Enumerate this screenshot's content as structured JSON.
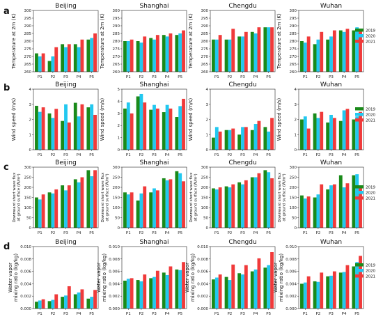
{
  "colors": {
    "2019": "#1a8a1a",
    "2020": "#22c8f0",
    "2021": "#f03a3a"
  },
  "chart_data": [
    {
      "type": "bar",
      "row_label": "a",
      "series_names": [
        "2019",
        "2020",
        "2021"
      ],
      "ylabel": "Temperature at 2m (K)",
      "categories": [
        "P1",
        "P2",
        "P3",
        "P4",
        "P5"
      ],
      "ylim": [
        260,
        300
      ],
      "yticks": [
        260,
        265,
        270,
        275,
        280,
        285,
        290,
        295,
        300
      ],
      "panels": [
        {
          "title": "Beijing",
          "series": [
            [
              272,
              267,
              278,
              278,
              281
            ],
            [
              270,
              270,
              276,
              276,
              282
            ],
            [
              272,
              276,
              278,
              281,
              285
            ]
          ]
        },
        {
          "title": "Shanghai",
          "series": [
            [
              280,
              280,
              282,
              284,
              284
            ],
            [
              280,
              279,
              281,
              283,
              285
            ],
            [
              281,
              283,
              284,
              285,
              287
            ]
          ]
        },
        {
          "title": "Chengdu",
          "series": [
            [
              281,
              281,
              283,
              286,
              289
            ],
            [
              281,
              281,
              283,
              285,
              289
            ],
            [
              284,
              288,
              286,
              289,
              289
            ]
          ]
        },
        {
          "title": "Wuhan",
          "series": [
            [
              280,
              278,
              281,
              287,
              287
            ],
            [
              279,
              281,
              283,
              286,
              289
            ],
            [
              283,
              286,
              287,
              288,
              288
            ]
          ]
        }
      ]
    },
    {
      "type": "bar",
      "row_label": "b",
      "series_names": [
        "2019",
        "2020",
        "2021"
      ],
      "ylabel": "Wind speed (m/s)",
      "categories": [
        "P1",
        "P2",
        "P3",
        "P4",
        "P5"
      ],
      "panels": [
        {
          "title": "Beijing",
          "ylim": [
            0,
            4
          ],
          "yticks": [
            0,
            1,
            2,
            3,
            4
          ],
          "series": [
            [
              2.9,
              2.4,
              1.9,
              3.1,
              2.8
            ],
            [
              2.5,
              2.1,
              3.0,
              2.2,
              3.0
            ],
            [
              2.8,
              2.7,
              1.8,
              3.0,
              2.3
            ]
          ]
        },
        {
          "title": "Shanghai",
          "ylim": [
            0,
            5
          ],
          "yticks": [
            0,
            1,
            2,
            3,
            4,
            5
          ],
          "series": [
            [
              3.4,
              4.4,
              3.3,
              3.1,
              2.7
            ],
            [
              3.9,
              4.6,
              3.7,
              3.7,
              3.6
            ],
            [
              3.0,
              3.9,
              3.4,
              3.4,
              4.2
            ]
          ]
        },
        {
          "title": "Chengdu",
          "ylim": [
            0,
            4
          ],
          "yticks": [
            0,
            1,
            2,
            3,
            4
          ],
          "series": [
            [
              0.8,
              1.3,
              1.0,
              1.3,
              1.5
            ],
            [
              1.5,
              1.3,
              1.5,
              1.7,
              1.2
            ],
            [
              1.2,
              1.4,
              1.5,
              1.9,
              2.1
            ]
          ]
        },
        {
          "title": "Wuhan",
          "ylim": [
            0,
            4
          ],
          "yticks": [
            0,
            1,
            2,
            3,
            4
          ],
          "series": [
            [
              2.0,
              2.4,
              1.8,
              1.9,
              2.0
            ],
            [
              2.2,
              2.1,
              2.3,
              2.6,
              2.2
            ],
            [
              1.4,
              2.5,
              2.1,
              2.7,
              2.5
            ]
          ]
        }
      ]
    },
    {
      "type": "bar",
      "row_label": "c",
      "series_names": [
        "2019",
        "2020",
        "2021"
      ],
      "ylabel": "Downward short wave flux at ground surface (W/m²)",
      "categories": [
        "P1",
        "P2",
        "P3",
        "P4",
        "P5"
      ],
      "ylim": [
        0,
        300
      ],
      "yticks": [
        0,
        50,
        100,
        150,
        200,
        250,
        300
      ],
      "panels": [
        {
          "title": "Beijing",
          "series": [
            [
              150,
              175,
              210,
              240,
              285
            ],
            [
              140,
              170,
              185,
              225,
              255
            ],
            [
              165,
              190,
              210,
              250,
              285
            ]
          ]
        },
        {
          "title": "Shanghai",
          "series": [
            [
              175,
              135,
              175,
              245,
              280
            ],
            [
              165,
              170,
              195,
              235,
              270
            ],
            [
              175,
              205,
              185,
              240,
              230
            ]
          ]
        },
        {
          "title": "Chengdu",
          "series": [
            [
              195,
              205,
              225,
              250,
              285
            ],
            [
              190,
              200,
              215,
              250,
              275
            ],
            [
              200,
              215,
              235,
              270,
              245
            ]
          ]
        },
        {
          "title": "Wuhan",
          "series": [
            [
              160,
              150,
              190,
              260,
              260
            ],
            [
              145,
              165,
              210,
              200,
              265
            ],
            [
              155,
              215,
              215,
              220,
              200
            ]
          ]
        }
      ]
    },
    {
      "type": "bar",
      "row_label": "d",
      "series_names": [
        "2019",
        "2020",
        "2021"
      ],
      "ylabel": "Water vapor mixing ratio (kg/kg)",
      "categories": [
        "P1",
        "P2",
        "P3",
        "P4",
        "P5"
      ],
      "ylim": [
        0,
        0.01
      ],
      "yticks": [
        0,
        0.002,
        0.004,
        0.006,
        0.008,
        0.01
      ],
      "ytick_labels": [
        "0.000",
        "0.002",
        "0.004",
        "0.006",
        "0.008",
        "0.010"
      ],
      "panels": [
        {
          "title": "Beijing",
          "series": [
            [
              0.0011,
              0.0012,
              0.0019,
              0.0023,
              0.0016
            ],
            [
              0.0013,
              0.0014,
              0.0021,
              0.0026,
              0.0019
            ],
            [
              0.0015,
              0.0023,
              0.0036,
              0.0031,
              0.003
            ]
          ]
        },
        {
          "title": "Shanghai",
          "series": [
            [
              0.0045,
              0.0046,
              0.0049,
              0.0058,
              0.0063
            ],
            [
              0.0048,
              0.0044,
              0.0051,
              0.0054,
              0.0062
            ],
            [
              0.0049,
              0.0055,
              0.0061,
              0.0068,
              0.0075
            ]
          ]
        },
        {
          "title": "Chengdu",
          "series": [
            [
              0.0047,
              0.0051,
              0.0057,
              0.006,
              0.0066
            ],
            [
              0.005,
              0.0046,
              0.0055,
              0.0063,
              0.007
            ],
            [
              0.0055,
              0.0071,
              0.007,
              0.0081,
              0.0091
            ]
          ]
        },
        {
          "title": "Wuhan",
          "series": [
            [
              0.004,
              0.0044,
              0.0052,
              0.0058,
              0.0068
            ],
            [
              0.0042,
              0.0043,
              0.0053,
              0.0059,
              0.0075
            ],
            [
              0.0052,
              0.0058,
              0.006,
              0.007,
              0.0085
            ]
          ]
        }
      ]
    }
  ]
}
